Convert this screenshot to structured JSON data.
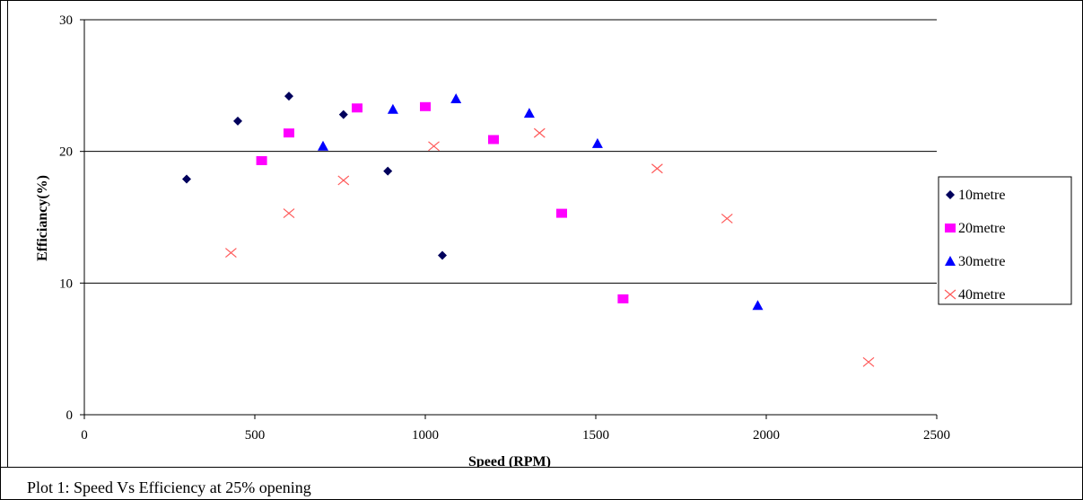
{
  "chart_data": {
    "type": "scatter",
    "title": "",
    "xlabel": "Speed (RPM)",
    "ylabel": "Efficiancy(%)",
    "xlim": [
      0,
      2500
    ],
    "ylim": [
      0,
      30
    ],
    "xticks": [
      0,
      500,
      1000,
      1500,
      2000,
      2500
    ],
    "yticks": [
      0,
      10,
      20,
      30
    ],
    "grid": "horizontal major",
    "legend_position": "right",
    "series": [
      {
        "name": "10metre",
        "marker": "diamond",
        "color": "#00005c",
        "points": [
          [
            300,
            17.9
          ],
          [
            450,
            22.3
          ],
          [
            600,
            24.2
          ],
          [
            760,
            22.8
          ],
          [
            890,
            18.5
          ],
          [
            1050,
            12.1
          ]
        ]
      },
      {
        "name": "20metre",
        "marker": "square",
        "color": "#ff00ff",
        "points": [
          [
            520,
            19.3
          ],
          [
            600,
            21.4
          ],
          [
            800,
            23.3
          ],
          [
            1000,
            23.4
          ],
          [
            1200,
            20.9
          ],
          [
            1400,
            15.3
          ],
          [
            1580,
            8.8
          ]
        ]
      },
      {
        "name": "30metre",
        "marker": "triangle",
        "color": "#0000ff",
        "points": [
          [
            700,
            20.4
          ],
          [
            905,
            23.2
          ],
          [
            1090,
            24.0
          ],
          [
            1305,
            22.9
          ],
          [
            1505,
            20.6
          ],
          [
            1975,
            8.3
          ]
        ]
      },
      {
        "name": "40metre",
        "marker": "x",
        "color": "#ff5a5a",
        "points": [
          [
            430,
            12.3
          ],
          [
            600,
            15.3
          ],
          [
            760,
            17.8
          ],
          [
            1025,
            20.4
          ],
          [
            1335,
            21.4
          ],
          [
            1680,
            18.7
          ],
          [
            1885,
            14.9
          ],
          [
            2300,
            4.0
          ]
        ]
      }
    ]
  },
  "caption": "Plot 1: Speed Vs Efficiency at 25% opening"
}
